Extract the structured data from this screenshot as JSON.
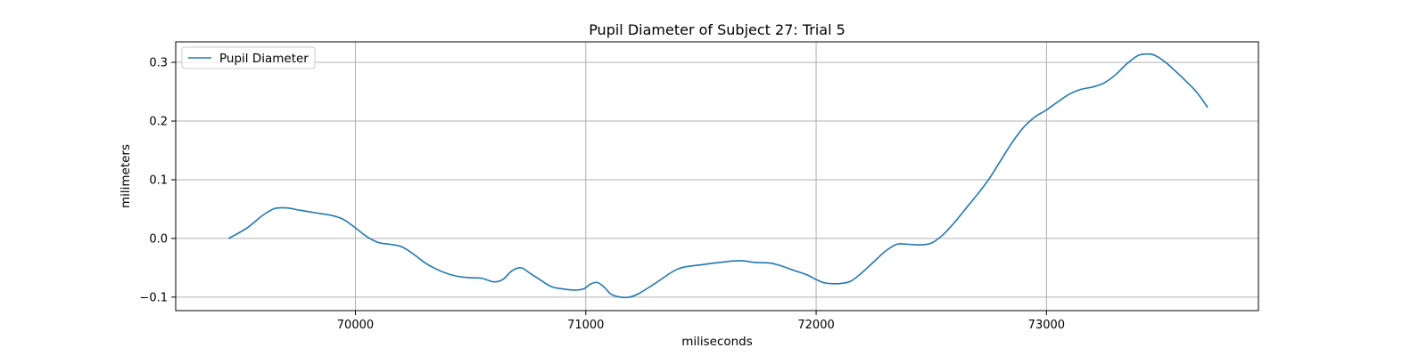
{
  "chart_data": {
    "type": "line",
    "title": "Pupil Diameter of Subject 27: Trial 5",
    "xlabel": "miliseconds",
    "ylabel": "milimeters",
    "xlim": [
      69220,
      73920
    ],
    "ylim": [
      -0.123,
      0.335
    ],
    "xticks": [
      70000,
      71000,
      72000,
      73000
    ],
    "xtick_labels": [
      "70000",
      "71000",
      "72000",
      "73000"
    ],
    "yticks": [
      -0.1,
      0.0,
      0.1,
      0.2,
      0.3
    ],
    "ytick_labels": [
      "−0.1",
      "0.0",
      "0.1",
      "0.2",
      "0.3"
    ],
    "grid": true,
    "legend": {
      "placement": "top-left",
      "entries": [
        "Pupil Diameter"
      ]
    },
    "colors": {
      "series": "#1f77b4",
      "grid": "#b0b0b0",
      "axes": "#000000"
    },
    "series": [
      {
        "name": "Pupil Diameter",
        "x": [
          69450,
          69530,
          69600,
          69650,
          69700,
          69760,
          69820,
          69900,
          69950,
          70000,
          70050,
          70100,
          70150,
          70200,
          70250,
          70300,
          70350,
          70400,
          70450,
          70500,
          70550,
          70600,
          70640,
          70680,
          70720,
          70760,
          70800,
          70850,
          70900,
          70950,
          70990,
          71020,
          71050,
          71080,
          71110,
          71150,
          71190,
          71230,
          71300,
          71400,
          71500,
          71600,
          71670,
          71740,
          71800,
          71850,
          71900,
          71960,
          72000,
          72040,
          72100,
          72150,
          72200,
          72250,
          72300,
          72350,
          72400,
          72450,
          72500,
          72550,
          72600,
          72650,
          72700,
          72750,
          72800,
          72850,
          72900,
          72950,
          73000,
          73050,
          73100,
          73150,
          73200,
          73250,
          73300,
          73350,
          73400,
          73450,
          73480,
          73520,
          73560,
          73600,
          73650,
          73700
        ],
        "y": [
          0.0,
          0.018,
          0.04,
          0.051,
          0.052,
          0.048,
          0.044,
          0.039,
          0.032,
          0.018,
          0.003,
          -0.007,
          -0.01,
          -0.014,
          -0.026,
          -0.041,
          -0.052,
          -0.06,
          -0.065,
          -0.067,
          -0.068,
          -0.074,
          -0.07,
          -0.055,
          -0.05,
          -0.06,
          -0.07,
          -0.082,
          -0.086,
          -0.088,
          -0.086,
          -0.078,
          -0.075,
          -0.083,
          -0.095,
          -0.1,
          -0.1,
          -0.094,
          -0.077,
          -0.052,
          -0.045,
          -0.04,
          -0.038,
          -0.041,
          -0.042,
          -0.047,
          -0.054,
          -0.062,
          -0.07,
          -0.076,
          -0.077,
          -0.073,
          -0.058,
          -0.04,
          -0.022,
          -0.01,
          -0.01,
          -0.011,
          -0.008,
          0.006,
          0.027,
          0.051,
          0.075,
          0.101,
          0.132,
          0.163,
          0.189,
          0.207,
          0.219,
          0.233,
          0.246,
          0.254,
          0.258,
          0.265,
          0.279,
          0.298,
          0.312,
          0.314,
          0.31,
          0.299,
          0.285,
          0.27,
          0.25,
          0.223
        ]
      }
    ]
  }
}
